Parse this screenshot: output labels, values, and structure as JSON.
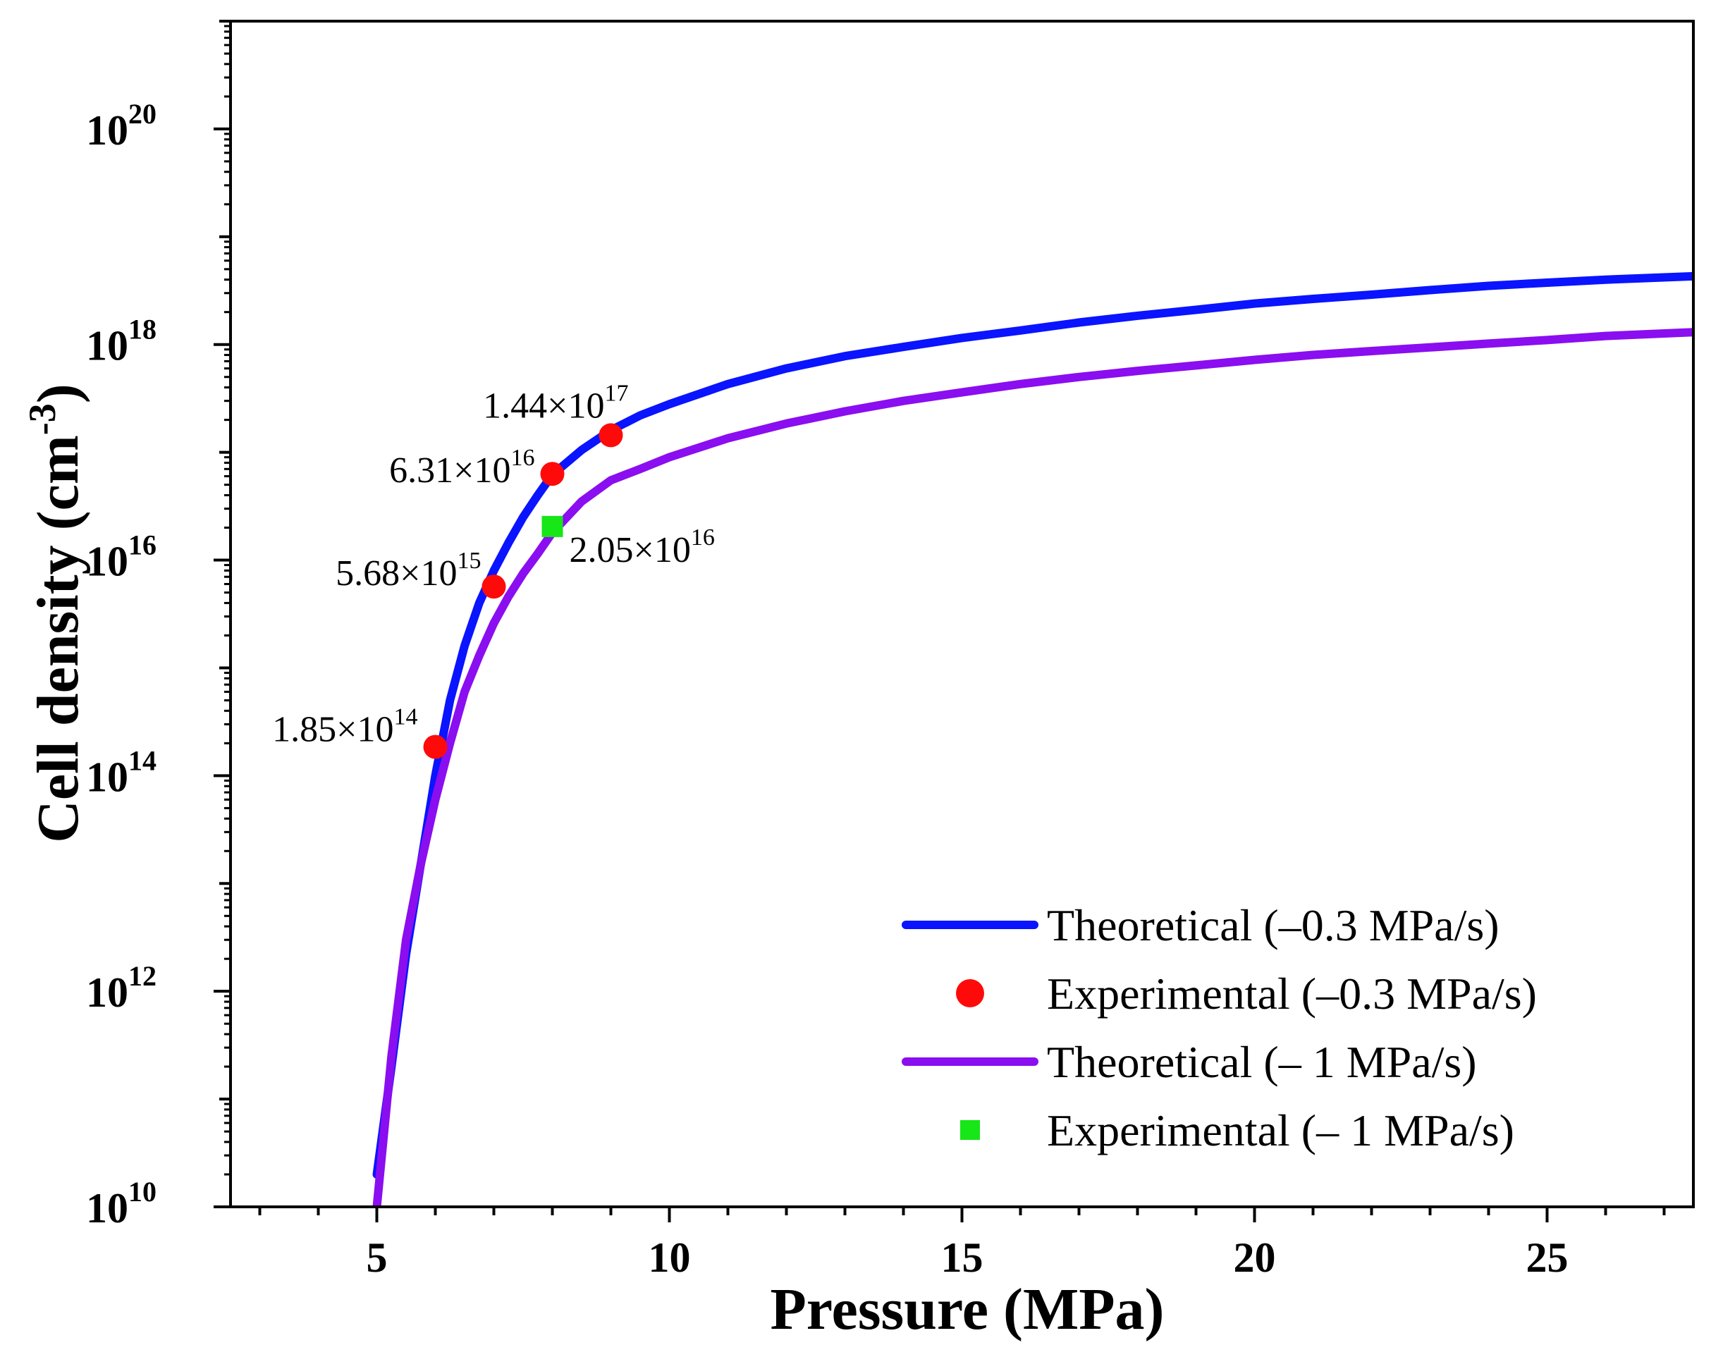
{
  "chart_data": {
    "type": "line",
    "xlabel": "Pressure (MPa)",
    "ylabel": "Cell density (cm",
    "ylabel_sup": "-3",
    "ylabel_close": ")",
    "xlim": [
      2.5,
      27.5
    ],
    "ylim_exponent": [
      10,
      21
    ],
    "y_scale": "log",
    "x_ticks": [
      5,
      10,
      15,
      20,
      25
    ],
    "x_tick_labels": [
      "5",
      "10",
      "15",
      "20",
      "25"
    ],
    "y_ticks": [
      {
        "base": "10",
        "exp": "10",
        "value_exp": 10
      },
      {
        "base": "10",
        "exp": "12",
        "value_exp": 12
      },
      {
        "base": "10",
        "exp": "14",
        "value_exp": 14
      },
      {
        "base": "10",
        "exp": "16",
        "value_exp": 16
      },
      {
        "base": "10",
        "exp": "18",
        "value_exp": 18
      },
      {
        "base": "10",
        "exp": "20",
        "value_exp": 20
      }
    ],
    "grid": false,
    "legend_position": "bottom-right",
    "series": [
      {
        "name": "Theoretical (–0.3 MPa/s)",
        "kind": "line",
        "color": "#0a14ff",
        "points": [
          [
            5.0,
            20000000000.0
          ],
          [
            5.25,
            200000000000.0
          ],
          [
            5.5,
            2200000000000.0
          ],
          [
            5.75,
            15000000000000.0
          ],
          [
            6.0,
            100000000000000.0
          ],
          [
            6.25,
            500000000000000.0
          ],
          [
            6.5,
            1600000000000000.0
          ],
          [
            6.75,
            4000000000000000.0
          ],
          [
            7.0,
            8000000000000000.0
          ],
          [
            7.25,
            1.45e+16
          ],
          [
            7.5,
            2.5e+16
          ],
          [
            7.75,
            4e+16
          ],
          [
            8.0,
            6.2e+16
          ],
          [
            8.5,
            1.05e+17
          ],
          [
            9.0,
            1.6e+17
          ],
          [
            9.5,
            2.2e+17
          ],
          [
            10.0,
            2.8e+17
          ],
          [
            11.0,
            4.3e+17
          ],
          [
            12.0,
            6e+17
          ],
          [
            13.0,
            7.8e+17
          ],
          [
            14.0,
            9.5e+17
          ],
          [
            15.0,
            1.15e+18
          ],
          [
            16.0,
            1.35e+18
          ],
          [
            17.0,
            1.6e+18
          ],
          [
            18.0,
            1.85e+18
          ],
          [
            19.0,
            2.1e+18
          ],
          [
            20.0,
            2.4e+18
          ],
          [
            21.0,
            2.65e+18
          ],
          [
            22.0,
            2.9e+18
          ],
          [
            23.0,
            3.2e+18
          ],
          [
            24.0,
            3.5e+18
          ],
          [
            25.0,
            3.75e+18
          ],
          [
            26.0,
            4e+18
          ],
          [
            27.5,
            4.3e+18
          ]
        ]
      },
      {
        "name": "Experimental (–0.3 MPa/s)",
        "kind": "scatter",
        "marker": "circle",
        "color": "#ff0a0a",
        "points": [
          [
            6,
            185000000000000.0
          ],
          [
            7,
            5680000000000000.0
          ],
          [
            8,
            6.31e+16
          ],
          [
            9,
            1.44e+17
          ]
        ],
        "labels": [
          {
            "base": "1.85×10",
            "exp": "14"
          },
          {
            "base": "5.68×10",
            "exp": "15"
          },
          {
            "base": "6.31×10",
            "exp": "16"
          },
          {
            "base": "1.44×10",
            "exp": "17"
          }
        ]
      },
      {
        "name": "Theoretical (– 1 MPa/s)",
        "kind": "line",
        "color": "#8a0ef0",
        "points": [
          [
            5.0,
            10000000000.0
          ],
          [
            5.25,
            250000000000.0
          ],
          [
            5.5,
            3000000000000.0
          ],
          [
            5.75,
            15000000000000.0
          ],
          [
            6.0,
            60000000000000.0
          ],
          [
            6.25,
            200000000000000.0
          ],
          [
            6.5,
            600000000000000.0
          ],
          [
            6.75,
            1300000000000000.0
          ],
          [
            7.0,
            2600000000000000.0
          ],
          [
            7.25,
            4600000000000000.0
          ],
          [
            7.5,
            7500000000000000.0
          ],
          [
            7.75,
            1.15e+16
          ],
          [
            8.0,
            1.8e+16
          ],
          [
            8.5,
            3.5e+16
          ],
          [
            9.0,
            5.5e+16
          ],
          [
            9.5,
            7e+16
          ],
          [
            10.0,
            9e+16
          ],
          [
            11.0,
            1.35e+17
          ],
          [
            12.0,
            1.85e+17
          ],
          [
            13.0,
            2.4e+17
          ],
          [
            14.0,
            3e+17
          ],
          [
            15.0,
            3.6e+17
          ],
          [
            16.0,
            4.3e+17
          ],
          [
            17.0,
            5e+17
          ],
          [
            18.0,
            5.7e+17
          ],
          [
            19.0,
            6.4e+17
          ],
          [
            20.0,
            7.2e+17
          ],
          [
            21.0,
            8e+17
          ],
          [
            22.0,
            8.7e+17
          ],
          [
            23.0,
            9.4e+17
          ],
          [
            24.0,
            1.02e+18
          ],
          [
            25.0,
            1.1e+18
          ],
          [
            26.0,
            1.2e+18
          ],
          [
            27.5,
            1.3e+18
          ]
        ]
      },
      {
        "name": "Experimental (– 1 MPa/s)",
        "kind": "scatter",
        "marker": "square",
        "color": "#17e617",
        "points": [
          [
            8,
            2.05e+16
          ]
        ],
        "labels": [
          {
            "base": "2.05×10",
            "exp": "16"
          }
        ]
      }
    ]
  }
}
